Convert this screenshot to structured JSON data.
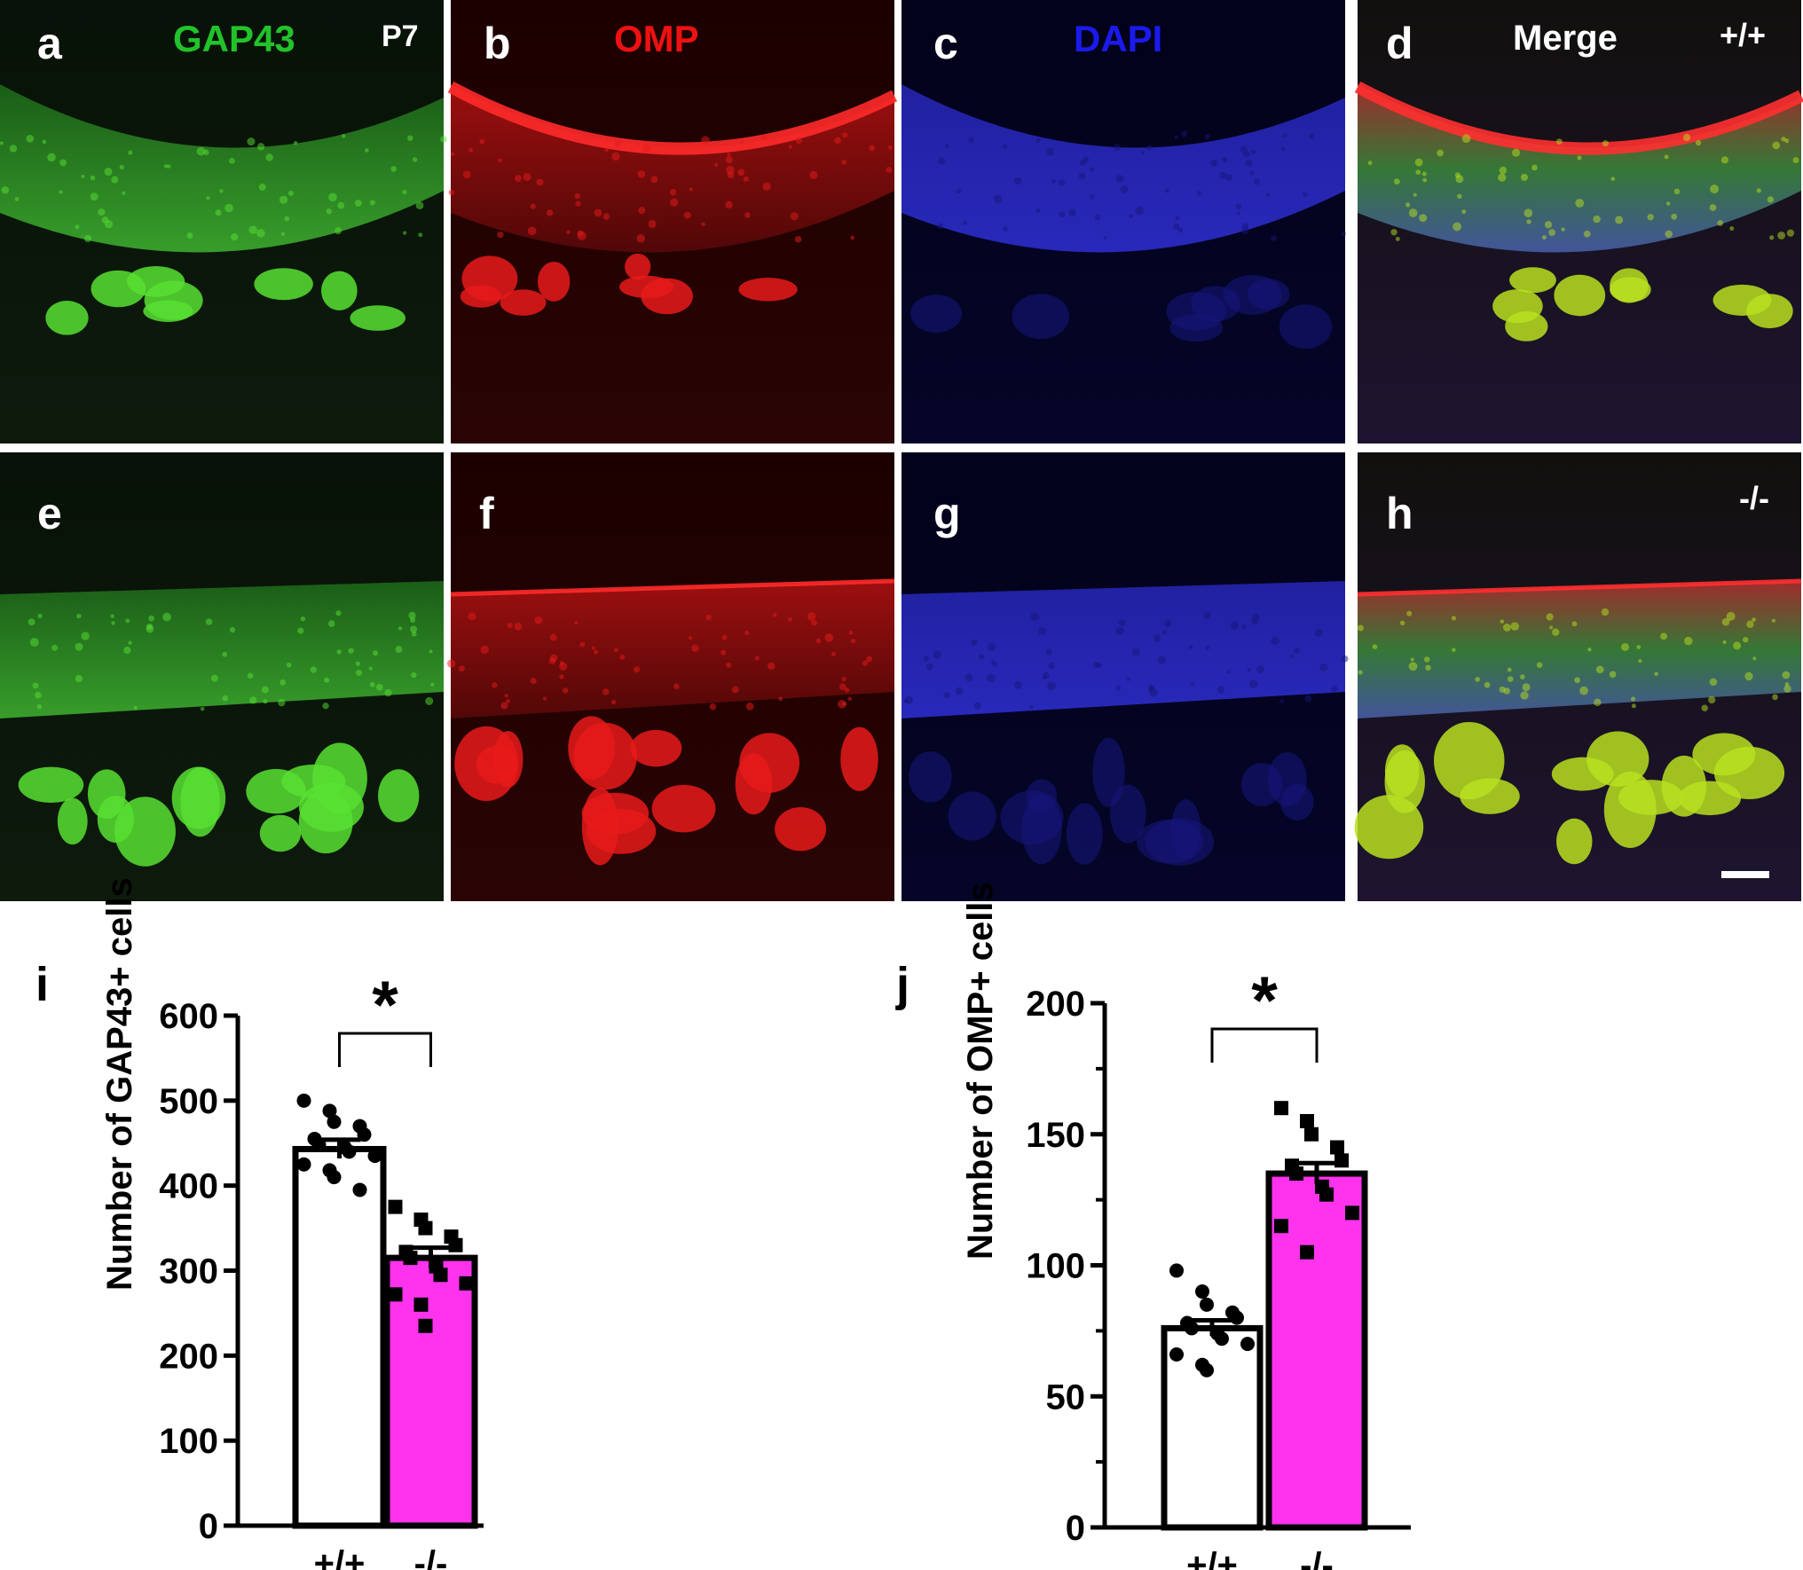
{
  "figure": {
    "top_row": {
      "genotype": "+/+",
      "age": "P7",
      "panels": [
        {
          "letter": "a",
          "stain": "GAP43",
          "color": "#22c32a",
          "channel": "green"
        },
        {
          "letter": "b",
          "stain": "OMP",
          "color": "#ee1111",
          "channel": "red"
        },
        {
          "letter": "c",
          "stain": "DAPI",
          "color": "#1a1aee",
          "channel": "blue"
        },
        {
          "letter": "d",
          "stain": "Merge",
          "color": "#ffffff",
          "channel": "merge"
        }
      ]
    },
    "bottom_row": {
      "genotype": "-/-",
      "panels": [
        {
          "letter": "e",
          "channel": "green"
        },
        {
          "letter": "f",
          "channel": "red"
        },
        {
          "letter": "g",
          "channel": "blue"
        },
        {
          "letter": "h",
          "channel": "merge"
        }
      ]
    }
  },
  "chart_data": [
    {
      "type": "bar",
      "panel_label": "i",
      "ylabel": "Number of  GAP43+ cells",
      "ylim": [
        0,
        600
      ],
      "yticks": [
        0,
        100,
        200,
        300,
        400,
        500,
        600
      ],
      "categories": [
        "+/+",
        "-/-"
      ],
      "values": [
        443,
        315
      ],
      "sem": [
        11,
        12
      ],
      "bar_colors": [
        "#ffffff",
        "#ff33ee"
      ],
      "significance": "*",
      "points": [
        [
          500,
          488,
          475,
          470,
          460,
          455,
          448,
          445,
          440,
          435,
          425,
          418,
          410,
          395
        ],
        [
          375,
          360,
          350,
          340,
          330,
          322,
          315,
          305,
          295,
          285,
          272,
          260,
          235
        ]
      ],
      "markers": [
        "circle",
        "square"
      ]
    },
    {
      "type": "bar",
      "panel_label": "j",
      "ylabel": "Number of  OMP+ cells",
      "ylim": [
        0,
        200
      ],
      "yticks": [
        0,
        50,
        100,
        150,
        200
      ],
      "minor_ticks": [
        25,
        75,
        125,
        175
      ],
      "categories": [
        "+/+",
        "-/-"
      ],
      "values": [
        76,
        135
      ],
      "sem": [
        3,
        4
      ],
      "bar_colors": [
        "#ffffff",
        "#ff33ee"
      ],
      "significance": "*",
      "points": [
        [
          98,
          90,
          85,
          82,
          80,
          78,
          76,
          74,
          72,
          70,
          66,
          62,
          60
        ],
        [
          160,
          155,
          150,
          145,
          140,
          138,
          135,
          130,
          127,
          120,
          115,
          105
        ]
      ],
      "markers": [
        "circle",
        "square"
      ]
    }
  ]
}
